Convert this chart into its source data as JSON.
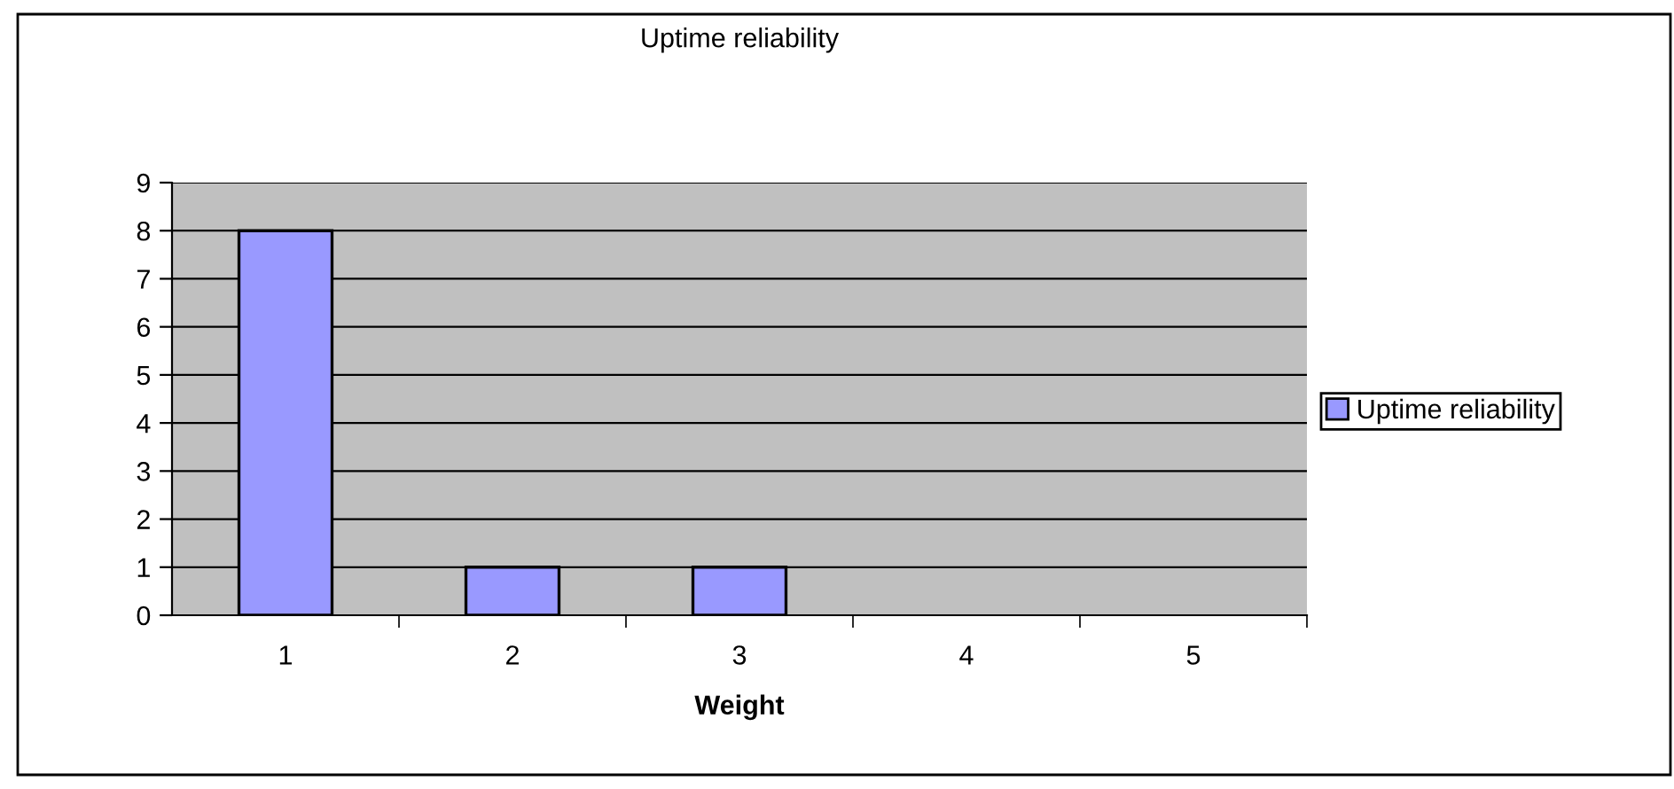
{
  "chart_data": {
    "type": "bar",
    "title": "Uptime reliability",
    "xlabel": "Weight",
    "categories": [
      "1",
      "2",
      "3",
      "4",
      "5"
    ],
    "series": [
      {
        "name": "Uptime reliability",
        "color": "#9999ff",
        "values": [
          8,
          1,
          1,
          0,
          0
        ]
      }
    ],
    "ylim": [
      0,
      9
    ],
    "yticks": [
      0,
      1,
      2,
      3,
      4,
      5,
      6,
      7,
      8,
      9
    ],
    "grid": "y",
    "legend": "right"
  }
}
